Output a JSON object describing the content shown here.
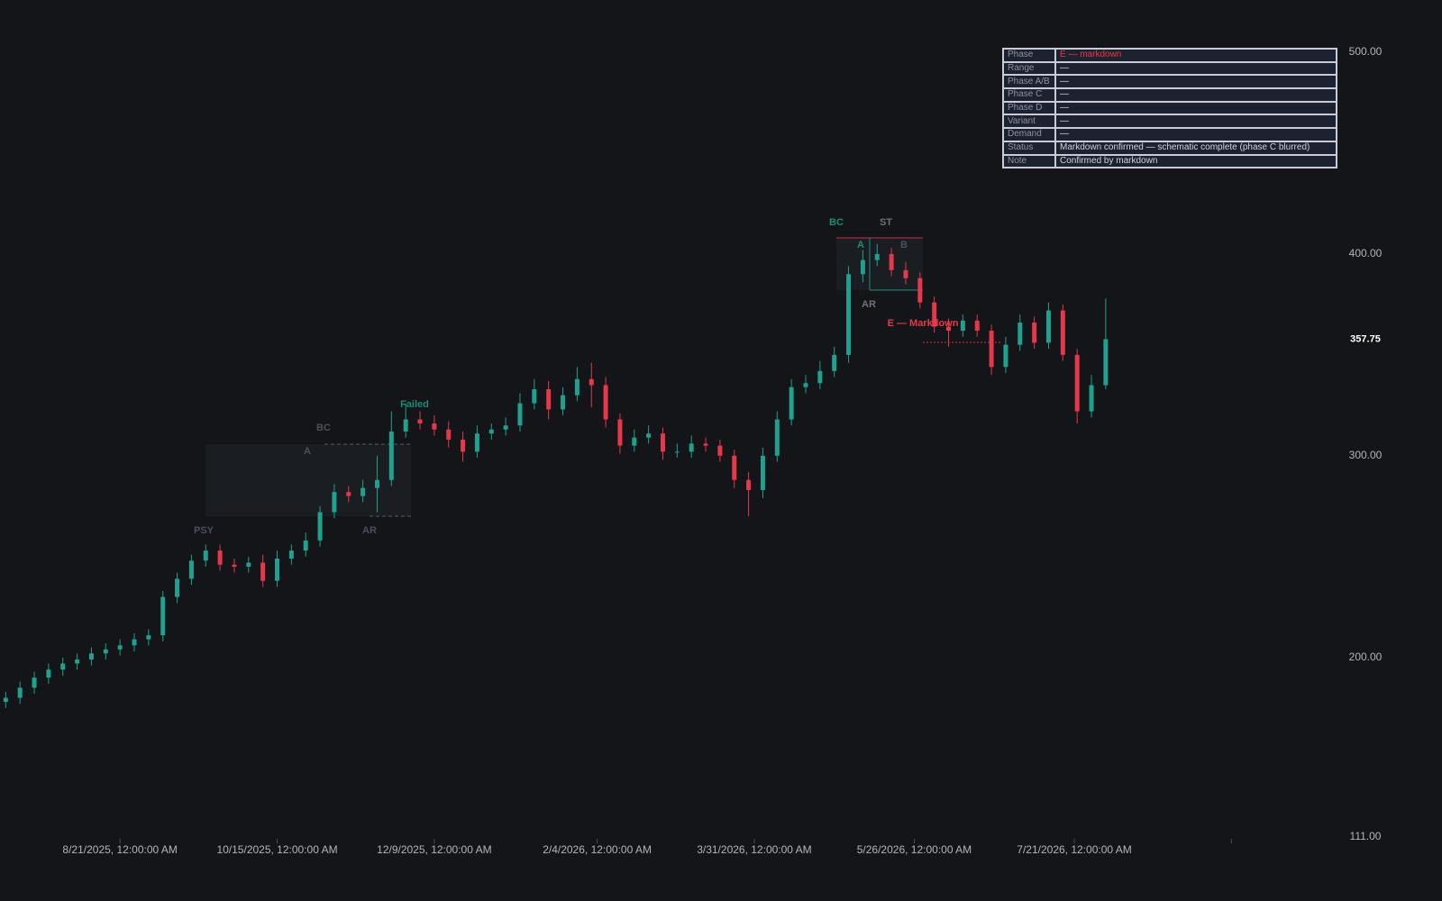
{
  "chart_data": {
    "type": "candlestick",
    "x": [
      "2025-07-12",
      "2025-07-17",
      "2025-07-22",
      "2025-07-27",
      "2025-08-01",
      "2025-08-06",
      "2025-08-11",
      "2025-08-16",
      "2025-08-21",
      "2025-08-26",
      "2025-08-31",
      "2025-09-05",
      "2025-09-10",
      "2025-09-15",
      "2025-09-20",
      "2025-09-25",
      "2025-09-30",
      "2025-10-05",
      "2025-10-10",
      "2025-10-15",
      "2025-10-20",
      "2025-10-25",
      "2025-10-30",
      "2025-11-04",
      "2025-11-09",
      "2025-11-14",
      "2025-11-19",
      "2025-11-24",
      "2025-11-29",
      "2025-12-04",
      "2025-12-09",
      "2025-12-14",
      "2025-12-19",
      "2025-12-24",
      "2025-12-29",
      "2026-01-03",
      "2026-01-08",
      "2026-01-13",
      "2026-01-18",
      "2026-01-23",
      "2026-01-28",
      "2026-02-02",
      "2026-02-07",
      "2026-02-12",
      "2026-02-17",
      "2026-02-22",
      "2026-02-27",
      "2026-03-04",
      "2026-03-09",
      "2026-03-14",
      "2026-03-19",
      "2026-03-24",
      "2026-03-29",
      "2026-04-03",
      "2026-04-08",
      "2026-04-13",
      "2026-04-18",
      "2026-04-23",
      "2026-04-28",
      "2026-05-03",
      "2026-05-08",
      "2026-05-13",
      "2026-05-18",
      "2026-05-23",
      "2026-05-28",
      "2026-06-02",
      "2026-06-07",
      "2026-06-12",
      "2026-06-17",
      "2026-06-22",
      "2026-06-27",
      "2026-07-02",
      "2026-07-07",
      "2026-07-12",
      "2026-07-17",
      "2026-07-22",
      "2026-07-27",
      "2026-08-01"
    ],
    "open": [
      178,
      180,
      185,
      190,
      194,
      197,
      199,
      202,
      204,
      206,
      209,
      211,
      230,
      239,
      248,
      253,
      246,
      245,
      247,
      238,
      249,
      253,
      258,
      272,
      282,
      280,
      284,
      288,
      312,
      318,
      316,
      313,
      308,
      302,
      311,
      313,
      315,
      326,
      333,
      323,
      330,
      338,
      335,
      318,
      305,
      309,
      311,
      302,
      302,
      306,
      305,
      300,
      288,
      283,
      300,
      318,
      334,
      336,
      342,
      350,
      390,
      397,
      400,
      392,
      388,
      376,
      364,
      362,
      367,
      362,
      344,
      355,
      366,
      356,
      372,
      350,
      322,
      335
    ],
    "high": [
      183,
      188,
      193,
      197,
      200,
      202,
      205,
      207,
      209,
      212,
      214,
      233,
      242,
      251,
      256,
      256,
      249,
      250,
      251,
      253,
      256,
      262,
      275,
      286,
      285,
      288,
      300,
      322,
      326,
      322,
      320,
      317,
      312,
      315,
      316,
      319,
      331,
      338,
      337,
      334,
      344,
      346,
      339,
      321,
      313,
      315,
      314,
      306,
      310,
      309,
      308,
      303,
      292,
      304,
      322,
      338,
      340,
      347,
      354,
      394,
      402,
      405,
      403,
      396,
      391,
      379,
      368,
      370,
      370,
      365,
      359,
      370,
      369,
      376,
      375,
      353,
      340,
      378
    ],
    "low": [
      175,
      177,
      182,
      187,
      191,
      194,
      196,
      199,
      201,
      203,
      206,
      208,
      227,
      236,
      245,
      243,
      242,
      242,
      235,
      235,
      246,
      250,
      255,
      269,
      277,
      277,
      272,
      285,
      309,
      313,
      310,
      304,
      297,
      299,
      308,
      310,
      312,
      323,
      318,
      320,
      327,
      324,
      314,
      301,
      302,
      306,
      298,
      299,
      299,
      302,
      297,
      284,
      270,
      279,
      297,
      315,
      331,
      333,
      339,
      346,
      386,
      394,
      389,
      385,
      373,
      361,
      354,
      359,
      359,
      340,
      341,
      352,
      353,
      353,
      347,
      316,
      319,
      333
    ],
    "close": [
      180,
      185,
      190,
      194,
      197,
      199,
      202,
      204,
      206,
      209,
      211,
      230,
      239,
      248,
      253,
      246,
      245,
      247,
      238,
      249,
      253,
      258,
      272,
      282,
      280,
      284,
      288,
      312,
      318,
      316,
      313,
      308,
      302,
      311,
      313,
      315,
      326,
      333,
      323,
      330,
      338,
      335,
      318,
      305,
      309,
      311,
      302,
      302,
      306,
      305,
      300,
      288,
      283,
      300,
      318,
      334,
      336,
      342,
      350,
      390,
      397,
      400,
      392,
      388,
      376,
      364,
      362,
      367,
      362,
      344,
      355,
      366,
      356,
      372,
      350,
      322,
      335,
      357.75
    ],
    "up_color": "#22a08e",
    "down_color": "#e5394b",
    "xlim": [
      "2025-07-10",
      "2026-10-23"
    ],
    "xticks": [
      {
        "value": "2025-08-21",
        "label": "8/21/2025, 12:00:00 AM"
      },
      {
        "value": "2025-10-15",
        "label": "10/15/2025, 12:00:00 AM"
      },
      {
        "value": "2025-12-09",
        "label": "12/9/2025, 12:00:00 AM"
      },
      {
        "value": "2026-02-04",
        "label": "2/4/2026, 12:00:00 AM"
      },
      {
        "value": "2026-03-31",
        "label": "3/31/2026, 12:00:00 AM"
      },
      {
        "value": "2026-05-26",
        "label": "5/26/2026, 12:00:00 AM"
      },
      {
        "value": "2026-07-21",
        "label": "7/21/2026, 12:00:00 AM"
      },
      {
        "value": "2026-09-14"
      }
    ],
    "ylim": [
      111,
      500
    ],
    "yticks": [
      {
        "value": 500,
        "label": "500.00"
      },
      {
        "value": 400,
        "label": "400.00"
      },
      {
        "value": 300,
        "label": "300.00"
      },
      {
        "value": 200,
        "label": "200.00"
      },
      {
        "value": 111,
        "label": "111.00"
      }
    ],
    "grid": false,
    "annotations": [
      {
        "text": "PSY",
        "color": "#4a505c"
      },
      {
        "text": "BC",
        "color": "#4a505c"
      },
      {
        "text": "A",
        "color": "#4a505c"
      },
      {
        "text": "AR",
        "color": "#4a505c"
      },
      {
        "text": "Failed",
        "color": "#1f8a7c"
      },
      {
        "text": "BC",
        "color": "#1f8a7c"
      },
      {
        "text": "ST",
        "color": "#6b717d"
      },
      {
        "text": "A",
        "color": "#1f8a7c"
      },
      {
        "text": "B",
        "color": "#4a505c"
      },
      {
        "text": "AR",
        "color": "#6b717d"
      },
      {
        "text": "E — Markdown",
        "color": "#e5394b"
      }
    ]
  },
  "table": {
    "rows": [
      [
        "Phase",
        "E — markdown"
      ],
      [
        "Range",
        "—"
      ],
      [
        "Phase A/B",
        "—"
      ],
      [
        "Phase C",
        "—"
      ],
      [
        "Phase D",
        "—"
      ],
      [
        "Variant",
        "—"
      ],
      [
        "Demand",
        "—"
      ],
      [
        "Status",
        "Markdown confirmed — schematic complete (phase C blurred)"
      ],
      [
        "Note",
        "Confirmed by markdown"
      ]
    ],
    "highlight_color": "#f23645"
  }
}
